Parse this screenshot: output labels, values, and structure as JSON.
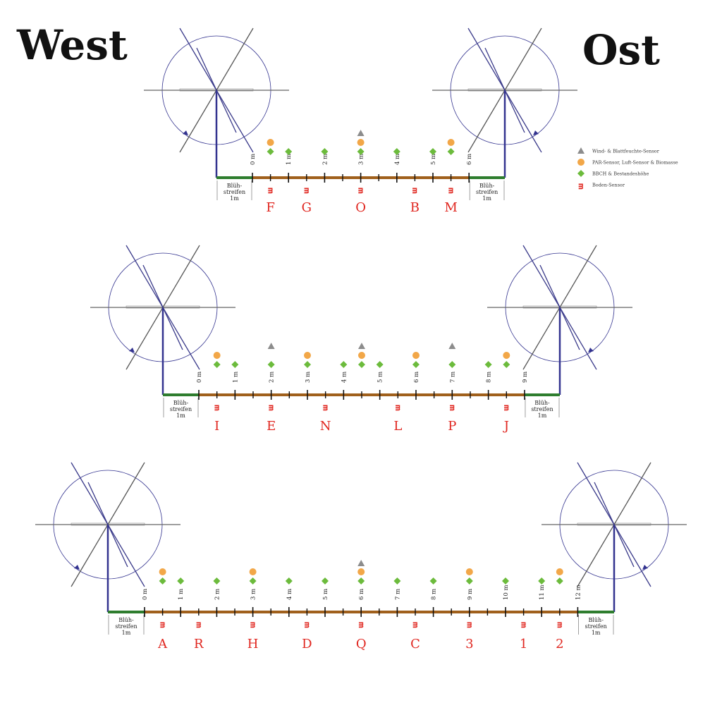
{
  "titles": {
    "west": "West",
    "east": "Ost"
  },
  "legend": [
    {
      "icon": "triangle",
      "label": "Wind- & Blattfeuchte-Sensor"
    },
    {
      "icon": "circle",
      "label": "PAR-Sensor, Luft-Sensor & Biomasse"
    },
    {
      "icon": "diamond",
      "label": "BBCH & Bestandeshöhe"
    },
    {
      "icon": "soil",
      "label": "Boden-Sensor"
    }
  ],
  "strip_label": {
    "line1": "Blüh-",
    "line2": "streifen",
    "line3": "1m"
  },
  "soil_glyph": "ᴟ",
  "colors": {
    "track": "#a0601c",
    "strip": "#2e7d2e",
    "frame": "#33338f",
    "triangle": "#8c8c8c",
    "circle": "#f2a748",
    "diamond": "#6cbb3c",
    "soil": "#e0261f"
  },
  "plots": [
    {
      "length_m": 6,
      "tick_labels": [
        "0 m",
        "1 m",
        "2 m",
        "3 m",
        "4 m",
        "5 m",
        "6 m"
      ],
      "triangles_m": [
        3
      ],
      "circles_m": [
        0.5,
        3,
        5.5
      ],
      "diamonds_m": [
        0.5,
        1,
        2,
        3,
        4,
        5,
        5.5
      ],
      "sensors": [
        {
          "pos_m": 0.5,
          "letter": "F"
        },
        {
          "pos_m": 1.5,
          "letter": "G"
        },
        {
          "pos_m": 3,
          "letter": "O"
        },
        {
          "pos_m": 4.5,
          "letter": "B"
        },
        {
          "pos_m": 5.5,
          "letter": "M"
        }
      ]
    },
    {
      "length_m": 9,
      "tick_labels": [
        "0 m",
        "1 m",
        "2 m",
        "3 m",
        "4 m",
        "5 m",
        "6 m",
        "7 m",
        "8 m",
        "9 m"
      ],
      "triangles_m": [
        2,
        4.5,
        7
      ],
      "circles_m": [
        0.5,
        3,
        4.5,
        6,
        8.5
      ],
      "diamonds_m": [
        0.5,
        1,
        2,
        3,
        4,
        4.5,
        5,
        6,
        7,
        8,
        8.5
      ],
      "sensors": [
        {
          "pos_m": 0.5,
          "letter": "I"
        },
        {
          "pos_m": 2,
          "letter": "E"
        },
        {
          "pos_m": 3.5,
          "letter": "N"
        },
        {
          "pos_m": 5.5,
          "letter": "L"
        },
        {
          "pos_m": 7,
          "letter": "P"
        },
        {
          "pos_m": 8.5,
          "letter": "J"
        }
      ]
    },
    {
      "length_m": 12,
      "tick_labels": [
        "0 m",
        "1 m",
        "2 m",
        "3 m",
        "4 m",
        "5 m",
        "6 m",
        "7 m",
        "8 m",
        "9 m",
        "10 m",
        "11 m",
        "12 m"
      ],
      "triangles_m": [
        6
      ],
      "circles_m": [
        0.5,
        3,
        6,
        9,
        11.5
      ],
      "diamonds_m": [
        0.5,
        1,
        2,
        3,
        4,
        5,
        6,
        7,
        8,
        9,
        10,
        11,
        11.5
      ],
      "sensors": [
        {
          "pos_m": 0.5,
          "letter": "A"
        },
        {
          "pos_m": 1.5,
          "letter": "R"
        },
        {
          "pos_m": 3,
          "letter": "H"
        },
        {
          "pos_m": 4.5,
          "letter": "D"
        },
        {
          "pos_m": 6,
          "letter": "Q"
        },
        {
          "pos_m": 7.5,
          "letter": "C"
        },
        {
          "pos_m": 9,
          "letter": "3"
        },
        {
          "pos_m": 10.5,
          "letter": "1"
        },
        {
          "pos_m": 11.5,
          "letter": "2"
        }
      ]
    }
  ]
}
